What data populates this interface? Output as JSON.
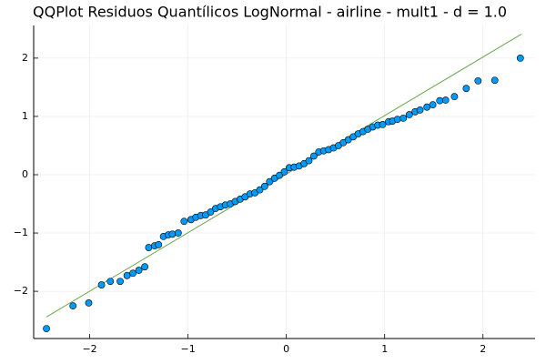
{
  "chart_data": {
    "type": "scatter",
    "title": "QQPlot Residuos Quantílicos LogNormal - airline - mult1 - d = 1.0",
    "xlim": [
      -2.57,
      2.53
    ],
    "ylim": [
      -2.81,
      2.56
    ],
    "xticks": [
      {
        "value": -2,
        "label": "−2"
      },
      {
        "value": -1,
        "label": "−1"
      },
      0,
      1,
      2
    ],
    "yticks": [
      {
        "value": -2,
        "label": "−2"
      },
      {
        "value": -1,
        "label": "−1"
      },
      0,
      1,
      2
    ],
    "grid": true,
    "series": [
      {
        "color": "#009af9",
        "x": [
          -2.44,
          -2.17,
          -2.01,
          -1.88,
          -1.79,
          -1.69,
          -1.62,
          -1.56,
          -1.5,
          -1.44,
          -1.4,
          -1.34,
          -1.3,
          -1.25,
          -1.2,
          -1.16,
          -1.1,
          -1.04,
          -0.97,
          -0.92,
          -0.87,
          -0.82,
          -0.77,
          -0.72,
          -0.67,
          -0.62,
          -0.57,
          -0.52,
          -0.47,
          -0.42,
          -0.37,
          -0.32,
          -0.27,
          -0.22,
          -0.17,
          -0.12,
          -0.07,
          -0.02,
          0.03,
          0.08,
          0.13,
          0.18,
          0.23,
          0.28,
          0.33,
          0.38,
          0.43,
          0.48,
          0.53,
          0.58,
          0.63,
          0.68,
          0.73,
          0.78,
          0.83,
          0.88,
          0.93,
          0.98,
          1.04,
          1.08,
          1.13,
          1.19,
          1.25,
          1.31,
          1.36,
          1.43,
          1.49,
          1.56,
          1.62,
          1.71,
          1.83,
          1.95,
          2.12,
          2.38
        ],
        "values": [
          -2.64,
          -2.25,
          -2.2,
          -1.89,
          -1.83,
          -1.83,
          -1.73,
          -1.69,
          -1.64,
          -1.58,
          -1.25,
          -1.22,
          -1.2,
          -1.06,
          -1.03,
          -1.02,
          -1.0,
          -0.8,
          -0.77,
          -0.73,
          -0.7,
          -0.69,
          -0.64,
          -0.58,
          -0.55,
          -0.52,
          -0.5,
          -0.46,
          -0.42,
          -0.38,
          -0.33,
          -0.31,
          -0.26,
          -0.2,
          -0.12,
          -0.06,
          -0.01,
          0.05,
          0.12,
          0.13,
          0.15,
          0.19,
          0.24,
          0.32,
          0.39,
          0.41,
          0.43,
          0.46,
          0.5,
          0.55,
          0.6,
          0.65,
          0.7,
          0.74,
          0.78,
          0.82,
          0.85,
          0.86,
          0.91,
          0.92,
          0.95,
          0.97,
          1.03,
          1.08,
          1.11,
          1.16,
          1.2,
          1.27,
          1.28,
          1.34,
          1.48,
          1.61,
          1.62,
          2.0
        ]
      }
    ],
    "reference_line": {
      "color": "#6aa84f",
      "x": [
        -2.44,
        2.39
      ],
      "y": [
        -2.44,
        2.41
      ]
    }
  }
}
